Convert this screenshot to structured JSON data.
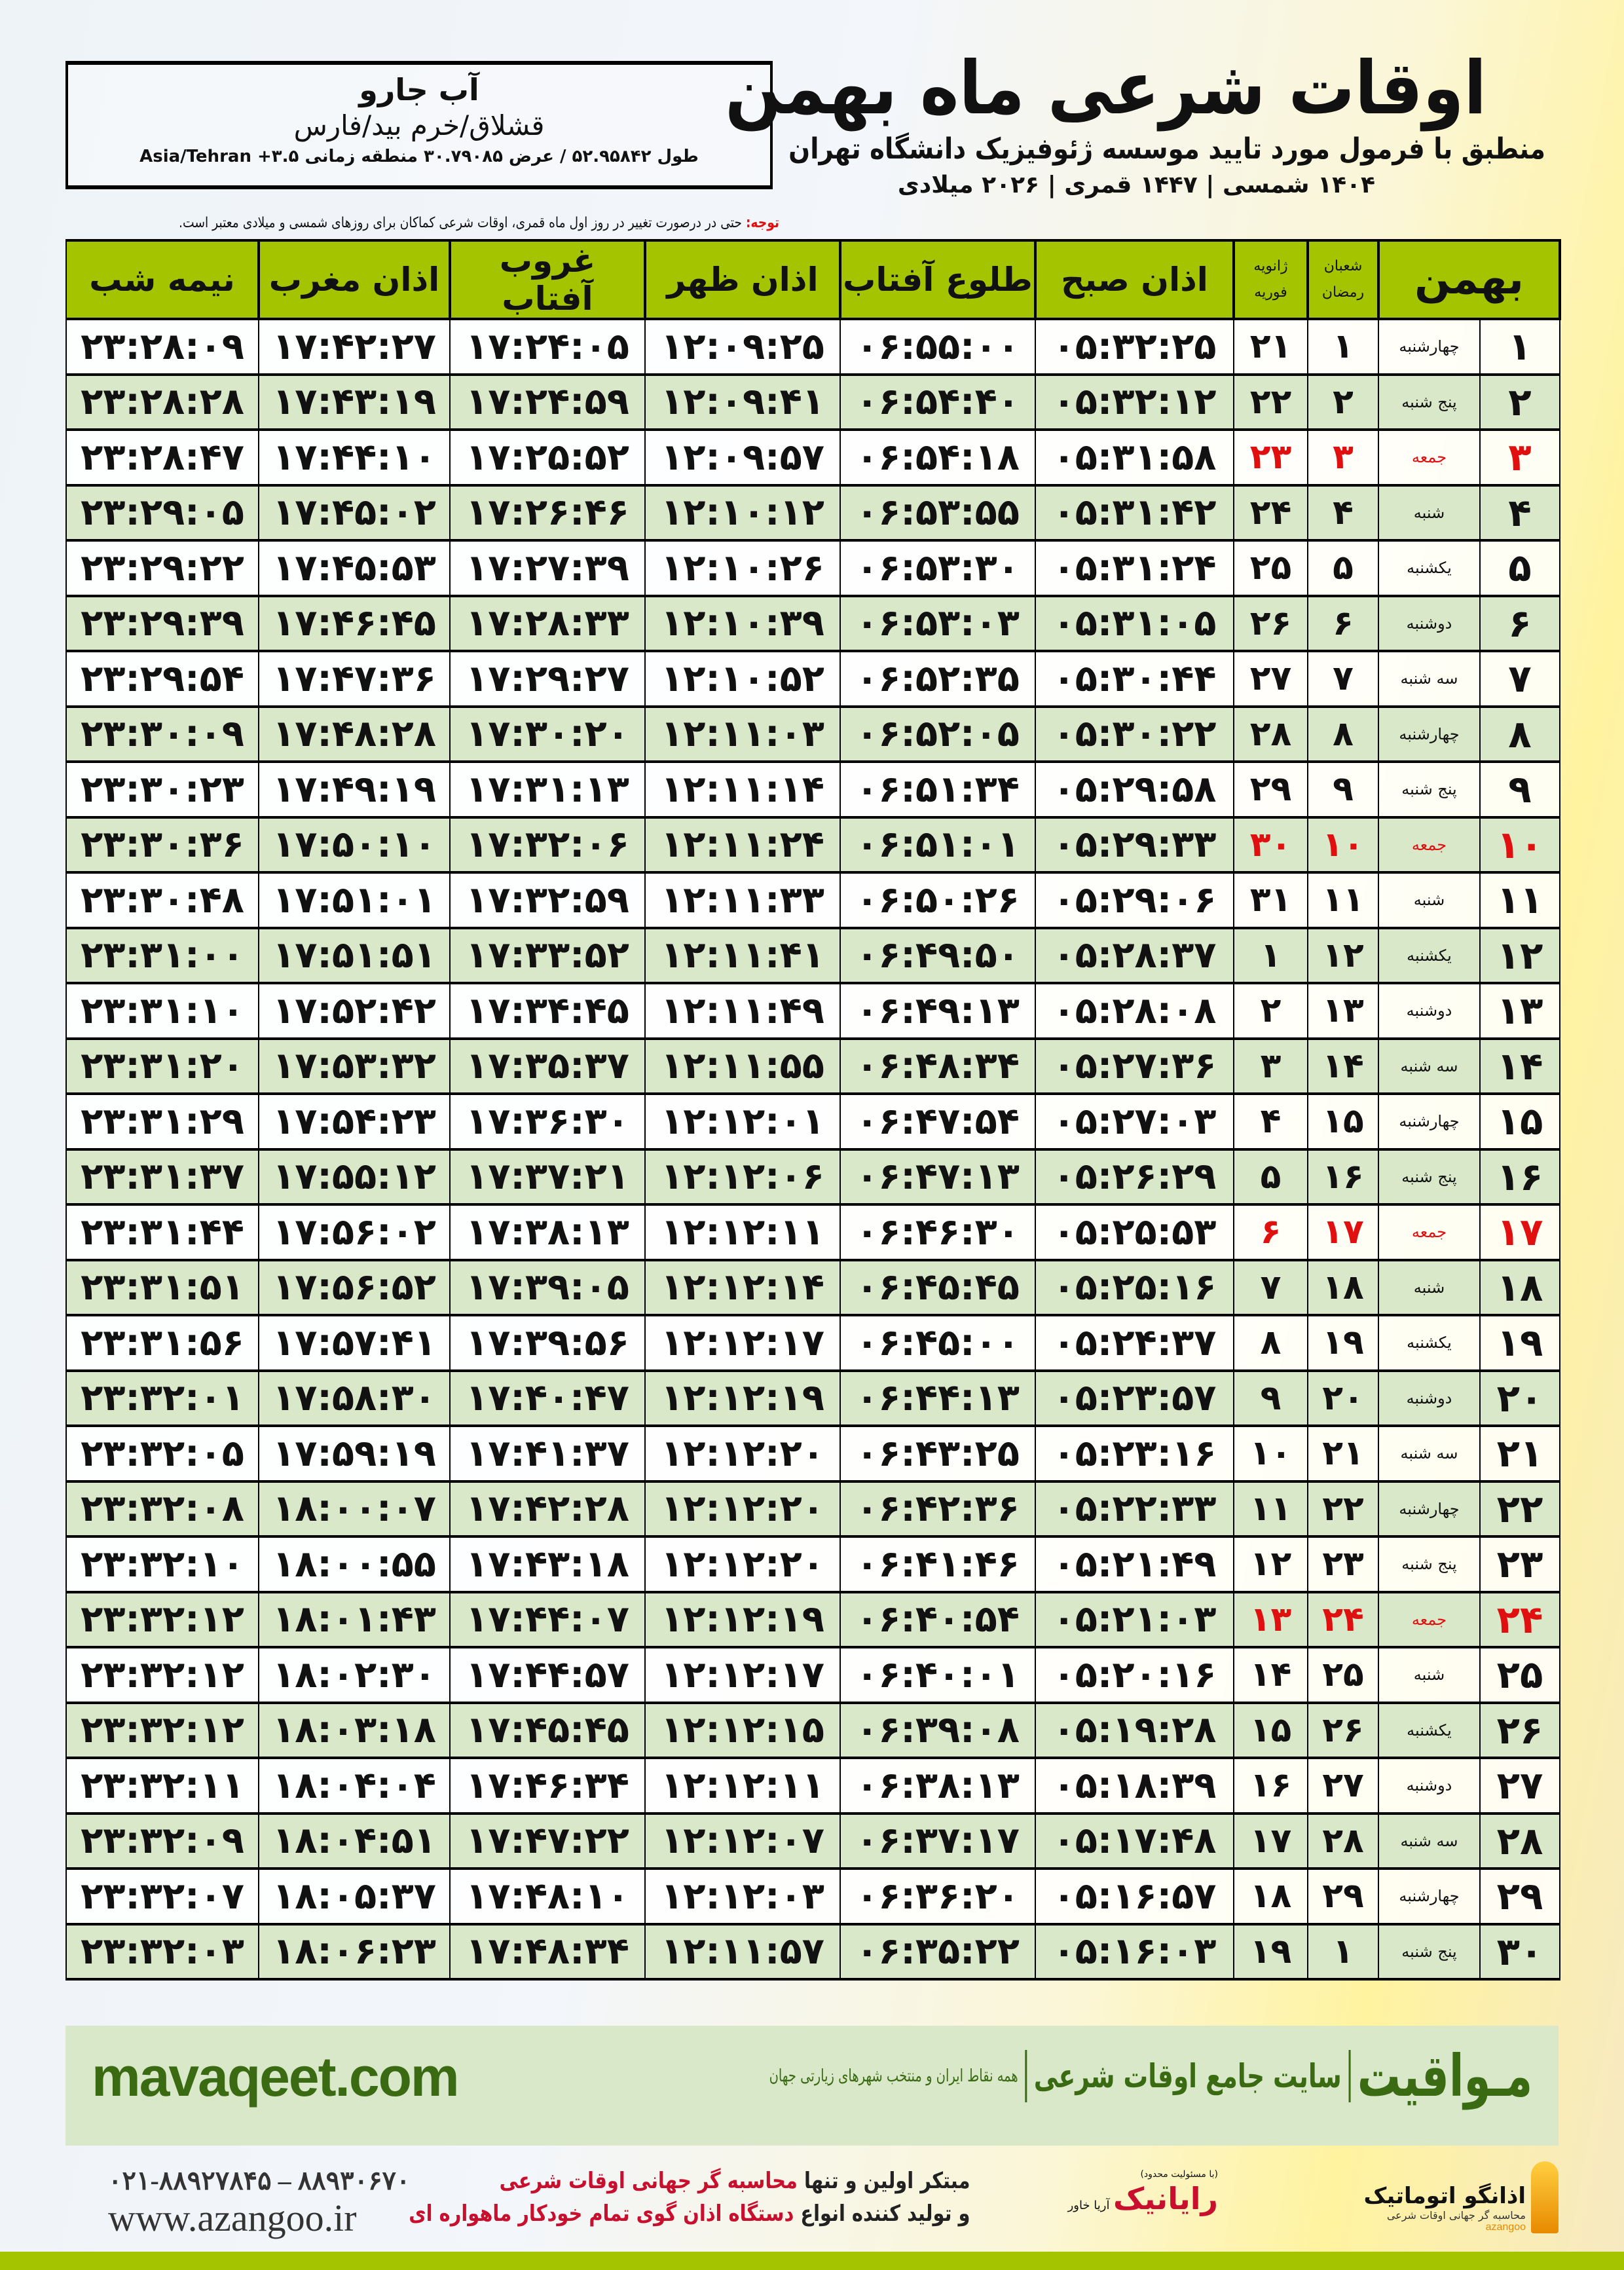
{
  "location": {
    "name": "آب جارو",
    "region": "قشلاق/خرم بید/فارس",
    "coords": "طول ۵۲.۹۵۸۴۲ / عرض ۳۰.۷۹۰۸۵ منطقه زمانی ۳.۵+ Asia/Tehran"
  },
  "header": {
    "title": "اوقات شرعی ماه بهمن",
    "subtitle": "منطبق با فرمول مورد تایید موسسه ژئوفیزیک دانشگاه تهران",
    "dates": "۱۴۰۴ شمسی | ۱۴۴۷ قمری | ۲۰۲۶ میلادی"
  },
  "note": {
    "label": "توجه:",
    "text": " حتی در درصورت تغییر در روز اول ماه قمری، اوقات شرعی کماکان برای روزهای شمسی و میلادی معتبر است."
  },
  "table": {
    "headers": {
      "month": "بهمن",
      "hijri_top": "شعبان",
      "hijri_bottom": "رمضان",
      "greg_top": "ژانویه",
      "greg_bottom": "فوریه",
      "fajr": "اذان صبح",
      "sunrise": "طلوع آفتاب",
      "dhuhr": "اذان ظهر",
      "sunset": "غروب آفتاب",
      "maghrib": "اذان مغرب",
      "midnight": "نیمه شب"
    },
    "friday_color": "#e01010",
    "header_color": "#a4c400",
    "alt_row_color": "#d9e8c8",
    "rows": [
      {
        "day": "۱",
        "weekday": "چهارشنبه",
        "hijri": "۱",
        "greg": "۲۱",
        "fajr": "۰۵:۳۲:۲۵",
        "sunrise": "۰۶:۵۵:۰۰",
        "dhuhr": "۱۲:۰۹:۲۵",
        "sunset": "۱۷:۲۴:۰۵",
        "maghrib": "۱۷:۴۲:۲۷",
        "midnight": "۲۳:۲۸:۰۹",
        "friday": false
      },
      {
        "day": "۲",
        "weekday": "پنج شنبه",
        "hijri": "۲",
        "greg": "۲۲",
        "fajr": "۰۵:۳۲:۱۲",
        "sunrise": "۰۶:۵۴:۴۰",
        "dhuhr": "۱۲:۰۹:۴۱",
        "sunset": "۱۷:۲۴:۵۹",
        "maghrib": "۱۷:۴۳:۱۹",
        "midnight": "۲۳:۲۸:۲۸",
        "friday": false
      },
      {
        "day": "۳",
        "weekday": "جمعه",
        "hijri": "۳",
        "greg": "۲۳",
        "fajr": "۰۵:۳۱:۵۸",
        "sunrise": "۰۶:۵۴:۱۸",
        "dhuhr": "۱۲:۰۹:۵۷",
        "sunset": "۱۷:۲۵:۵۲",
        "maghrib": "۱۷:۴۴:۱۰",
        "midnight": "۲۳:۲۸:۴۷",
        "friday": true
      },
      {
        "day": "۴",
        "weekday": "شنبه",
        "hijri": "۴",
        "greg": "۲۴",
        "fajr": "۰۵:۳۱:۴۲",
        "sunrise": "۰۶:۵۳:۵۵",
        "dhuhr": "۱۲:۱۰:۱۲",
        "sunset": "۱۷:۲۶:۴۶",
        "maghrib": "۱۷:۴۵:۰۲",
        "midnight": "۲۳:۲۹:۰۵",
        "friday": false
      },
      {
        "day": "۵",
        "weekday": "یکشنبه",
        "hijri": "۵",
        "greg": "۲۵",
        "fajr": "۰۵:۳۱:۲۴",
        "sunrise": "۰۶:۵۳:۳۰",
        "dhuhr": "۱۲:۱۰:۲۶",
        "sunset": "۱۷:۲۷:۳۹",
        "maghrib": "۱۷:۴۵:۵۳",
        "midnight": "۲۳:۲۹:۲۲",
        "friday": false
      },
      {
        "day": "۶",
        "weekday": "دوشنبه",
        "hijri": "۶",
        "greg": "۲۶",
        "fajr": "۰۵:۳۱:۰۵",
        "sunrise": "۰۶:۵۳:۰۳",
        "dhuhr": "۱۲:۱۰:۳۹",
        "sunset": "۱۷:۲۸:۳۳",
        "maghrib": "۱۷:۴۶:۴۵",
        "midnight": "۲۳:۲۹:۳۹",
        "friday": false
      },
      {
        "day": "۷",
        "weekday": "سه شنبه",
        "hijri": "۷",
        "greg": "۲۷",
        "fajr": "۰۵:۳۰:۴۴",
        "sunrise": "۰۶:۵۲:۳۵",
        "dhuhr": "۱۲:۱۰:۵۲",
        "sunset": "۱۷:۲۹:۲۷",
        "maghrib": "۱۷:۴۷:۳۶",
        "midnight": "۲۳:۲۹:۵۴",
        "friday": false
      },
      {
        "day": "۸",
        "weekday": "چهارشنبه",
        "hijri": "۸",
        "greg": "۲۸",
        "fajr": "۰۵:۳۰:۲۲",
        "sunrise": "۰۶:۵۲:۰۵",
        "dhuhr": "۱۲:۱۱:۰۳",
        "sunset": "۱۷:۳۰:۲۰",
        "maghrib": "۱۷:۴۸:۲۸",
        "midnight": "۲۳:۳۰:۰۹",
        "friday": false
      },
      {
        "day": "۹",
        "weekday": "پنج شنبه",
        "hijri": "۹",
        "greg": "۲۹",
        "fajr": "۰۵:۲۹:۵۸",
        "sunrise": "۰۶:۵۱:۳۴",
        "dhuhr": "۱۲:۱۱:۱۴",
        "sunset": "۱۷:۳۱:۱۳",
        "maghrib": "۱۷:۴۹:۱۹",
        "midnight": "۲۳:۳۰:۲۳",
        "friday": false
      },
      {
        "day": "۱۰",
        "weekday": "جمعه",
        "hijri": "۱۰",
        "greg": "۳۰",
        "fajr": "۰۵:۲۹:۳۳",
        "sunrise": "۰۶:۵۱:۰۱",
        "dhuhr": "۱۲:۱۱:۲۴",
        "sunset": "۱۷:۳۲:۰۶",
        "maghrib": "۱۷:۵۰:۱۰",
        "midnight": "۲۳:۳۰:۳۶",
        "friday": true
      },
      {
        "day": "۱۱",
        "weekday": "شنبه",
        "hijri": "۱۱",
        "greg": "۳۱",
        "fajr": "۰۵:۲۹:۰۶",
        "sunrise": "۰۶:۵۰:۲۶",
        "dhuhr": "۱۲:۱۱:۳۳",
        "sunset": "۱۷:۳۲:۵۹",
        "maghrib": "۱۷:۵۱:۰۱",
        "midnight": "۲۳:۳۰:۴۸",
        "friday": false
      },
      {
        "day": "۱۲",
        "weekday": "یکشنبه",
        "hijri": "۱۲",
        "greg": "۱",
        "fajr": "۰۵:۲۸:۳۷",
        "sunrise": "۰۶:۴۹:۵۰",
        "dhuhr": "۱۲:۱۱:۴۱",
        "sunset": "۱۷:۳۳:۵۲",
        "maghrib": "۱۷:۵۱:۵۱",
        "midnight": "۲۳:۳۱:۰۰",
        "friday": false
      },
      {
        "day": "۱۳",
        "weekday": "دوشنبه",
        "hijri": "۱۳",
        "greg": "۲",
        "fajr": "۰۵:۲۸:۰۸",
        "sunrise": "۰۶:۴۹:۱۳",
        "dhuhr": "۱۲:۱۱:۴۹",
        "sunset": "۱۷:۳۴:۴۵",
        "maghrib": "۱۷:۵۲:۴۲",
        "midnight": "۲۳:۳۱:۱۰",
        "friday": false
      },
      {
        "day": "۱۴",
        "weekday": "سه شنبه",
        "hijri": "۱۴",
        "greg": "۳",
        "fajr": "۰۵:۲۷:۳۶",
        "sunrise": "۰۶:۴۸:۳۴",
        "dhuhr": "۱۲:۱۱:۵۵",
        "sunset": "۱۷:۳۵:۳۷",
        "maghrib": "۱۷:۵۳:۳۲",
        "midnight": "۲۳:۳۱:۲۰",
        "friday": false
      },
      {
        "day": "۱۵",
        "weekday": "چهارشنبه",
        "hijri": "۱۵",
        "greg": "۴",
        "fajr": "۰۵:۲۷:۰۳",
        "sunrise": "۰۶:۴۷:۵۴",
        "dhuhr": "۱۲:۱۲:۰۱",
        "sunset": "۱۷:۳۶:۳۰",
        "maghrib": "۱۷:۵۴:۲۳",
        "midnight": "۲۳:۳۱:۲۹",
        "friday": false
      },
      {
        "day": "۱۶",
        "weekday": "پنج شنبه",
        "hijri": "۱۶",
        "greg": "۵",
        "fajr": "۰۵:۲۶:۲۹",
        "sunrise": "۰۶:۴۷:۱۳",
        "dhuhr": "۱۲:۱۲:۰۶",
        "sunset": "۱۷:۳۷:۲۱",
        "maghrib": "۱۷:۵۵:۱۲",
        "midnight": "۲۳:۳۱:۳۷",
        "friday": false
      },
      {
        "day": "۱۷",
        "weekday": "جمعه",
        "hijri": "۱۷",
        "greg": "۶",
        "fajr": "۰۵:۲۵:۵۳",
        "sunrise": "۰۶:۴۶:۳۰",
        "dhuhr": "۱۲:۱۲:۱۱",
        "sunset": "۱۷:۳۸:۱۳",
        "maghrib": "۱۷:۵۶:۰۲",
        "midnight": "۲۳:۳۱:۴۴",
        "friday": true
      },
      {
        "day": "۱۸",
        "weekday": "شنبه",
        "hijri": "۱۸",
        "greg": "۷",
        "fajr": "۰۵:۲۵:۱۶",
        "sunrise": "۰۶:۴۵:۴۵",
        "dhuhr": "۱۲:۱۲:۱۴",
        "sunset": "۱۷:۳۹:۰۵",
        "maghrib": "۱۷:۵۶:۵۲",
        "midnight": "۲۳:۳۱:۵۱",
        "friday": false
      },
      {
        "day": "۱۹",
        "weekday": "یکشنبه",
        "hijri": "۱۹",
        "greg": "۸",
        "fajr": "۰۵:۲۴:۳۷",
        "sunrise": "۰۶:۴۵:۰۰",
        "dhuhr": "۱۲:۱۲:۱۷",
        "sunset": "۱۷:۳۹:۵۶",
        "maghrib": "۱۷:۵۷:۴۱",
        "midnight": "۲۳:۳۱:۵۶",
        "friday": false
      },
      {
        "day": "۲۰",
        "weekday": "دوشنبه",
        "hijri": "۲۰",
        "greg": "۹",
        "fajr": "۰۵:۲۳:۵۷",
        "sunrise": "۰۶:۴۴:۱۳",
        "dhuhr": "۱۲:۱۲:۱۹",
        "sunset": "۱۷:۴۰:۴۷",
        "maghrib": "۱۷:۵۸:۳۰",
        "midnight": "۲۳:۳۲:۰۱",
        "friday": false
      },
      {
        "day": "۲۱",
        "weekday": "سه شنبه",
        "hijri": "۲۱",
        "greg": "۱۰",
        "fajr": "۰۵:۲۳:۱۶",
        "sunrise": "۰۶:۴۳:۲۵",
        "dhuhr": "۱۲:۱۲:۲۰",
        "sunset": "۱۷:۴۱:۳۷",
        "maghrib": "۱۷:۵۹:۱۹",
        "midnight": "۲۳:۳۲:۰۵",
        "friday": false
      },
      {
        "day": "۲۲",
        "weekday": "چهارشنبه",
        "hijri": "۲۲",
        "greg": "۱۱",
        "fajr": "۰۵:۲۲:۳۳",
        "sunrise": "۰۶:۴۲:۳۶",
        "dhuhr": "۱۲:۱۲:۲۰",
        "sunset": "۱۷:۴۲:۲۸",
        "maghrib": "۱۸:۰۰:۰۷",
        "midnight": "۲۳:۳۲:۰۸",
        "friday": false
      },
      {
        "day": "۲۳",
        "weekday": "پنج شنبه",
        "hijri": "۲۳",
        "greg": "۱۲",
        "fajr": "۰۵:۲۱:۴۹",
        "sunrise": "۰۶:۴۱:۴۶",
        "dhuhr": "۱۲:۱۲:۲۰",
        "sunset": "۱۷:۴۳:۱۸",
        "maghrib": "۱۸:۰۰:۵۵",
        "midnight": "۲۳:۳۲:۱۰",
        "friday": false
      },
      {
        "day": "۲۴",
        "weekday": "جمعه",
        "hijri": "۲۴",
        "greg": "۱۳",
        "fajr": "۰۵:۲۱:۰۳",
        "sunrise": "۰۶:۴۰:۵۴",
        "dhuhr": "۱۲:۱۲:۱۹",
        "sunset": "۱۷:۴۴:۰۷",
        "maghrib": "۱۸:۰۱:۴۳",
        "midnight": "۲۳:۳۲:۱۲",
        "friday": true
      },
      {
        "day": "۲۵",
        "weekday": "شنبه",
        "hijri": "۲۵",
        "greg": "۱۴",
        "fajr": "۰۵:۲۰:۱۶",
        "sunrise": "۰۶:۴۰:۰۱",
        "dhuhr": "۱۲:۱۲:۱۷",
        "sunset": "۱۷:۴۴:۵۷",
        "maghrib": "۱۸:۰۲:۳۰",
        "midnight": "۲۳:۳۲:۱۲",
        "friday": false
      },
      {
        "day": "۲۶",
        "weekday": "یکشنبه",
        "hijri": "۲۶",
        "greg": "۱۵",
        "fajr": "۰۵:۱۹:۲۸",
        "sunrise": "۰۶:۳۹:۰۸",
        "dhuhr": "۱۲:۱۲:۱۵",
        "sunset": "۱۷:۴۵:۴۵",
        "maghrib": "۱۸:۰۳:۱۸",
        "midnight": "۲۳:۳۲:۱۲",
        "friday": false
      },
      {
        "day": "۲۷",
        "weekday": "دوشنبه",
        "hijri": "۲۷",
        "greg": "۱۶",
        "fajr": "۰۵:۱۸:۳۹",
        "sunrise": "۰۶:۳۸:۱۳",
        "dhuhr": "۱۲:۱۲:۱۱",
        "sunset": "۱۷:۴۶:۳۴",
        "maghrib": "۱۸:۰۴:۰۴",
        "midnight": "۲۳:۳۲:۱۱",
        "friday": false
      },
      {
        "day": "۲۸",
        "weekday": "سه شنبه",
        "hijri": "۲۸",
        "greg": "۱۷",
        "fajr": "۰۵:۱۷:۴۸",
        "sunrise": "۰۶:۳۷:۱۷",
        "dhuhr": "۱۲:۱۲:۰۷",
        "sunset": "۱۷:۴۷:۲۲",
        "maghrib": "۱۸:۰۴:۵۱",
        "midnight": "۲۳:۳۲:۰۹",
        "friday": false
      },
      {
        "day": "۲۹",
        "weekday": "چهارشنبه",
        "hijri": "۲۹",
        "greg": "۱۸",
        "fajr": "۰۵:۱۶:۵۷",
        "sunrise": "۰۶:۳۶:۲۰",
        "dhuhr": "۱۲:۱۲:۰۳",
        "sunset": "۱۷:۴۸:۱۰",
        "maghrib": "۱۸:۰۵:۳۷",
        "midnight": "۲۳:۳۲:۰۷",
        "friday": false
      },
      {
        "day": "۳۰",
        "weekday": "پنج شنبه",
        "hijri": "۱",
        "greg": "۱۹",
        "fajr": "۰۵:۱۶:۰۳",
        "sunrise": "۰۶:۳۵:۲۲",
        "dhuhr": "۱۲:۱۱:۵۷",
        "sunset": "۱۷:۴۸:۳۴",
        "maghrib": "۱۸:۰۶:۲۳",
        "midnight": "۲۳:۳۲:۰۳",
        "friday": false
      }
    ]
  },
  "banner": {
    "brand": "مـواقیت",
    "tagline": "سایت جامع اوقات شرعی",
    "subtag": "همه نقاط ایران و منتخب شهرهای زیارتی جهان",
    "site": "mavaqeet.com",
    "color": "#3a6b12"
  },
  "footer": {
    "phone": "۰۲۱-۸۸۹۲۷۸۴۵ – ۸۸۹۳۰۶۷۰",
    "website": "www.azangoo.ir",
    "promo_line1_a": "مبتکر اولین و تنها ",
    "promo_line1_b": "محاسبه گر جهانی اوقات شرعی",
    "promo_line2_a": "و تولید کننده انواع ",
    "promo_line2_b": "دستگاه اذان گوی تمام خودکار ماهواره ای",
    "logo1_name": "اذانگو اتوماتیک",
    "logo1_sub": "محاسبه گر جهانی اوقات شرعی",
    "logo1_latin": "azangoo",
    "logo2_name": "رایانیک",
    "logo2_side": "آریا خاور",
    "logo2_sub": "(با مسئولیت محدود)"
  }
}
